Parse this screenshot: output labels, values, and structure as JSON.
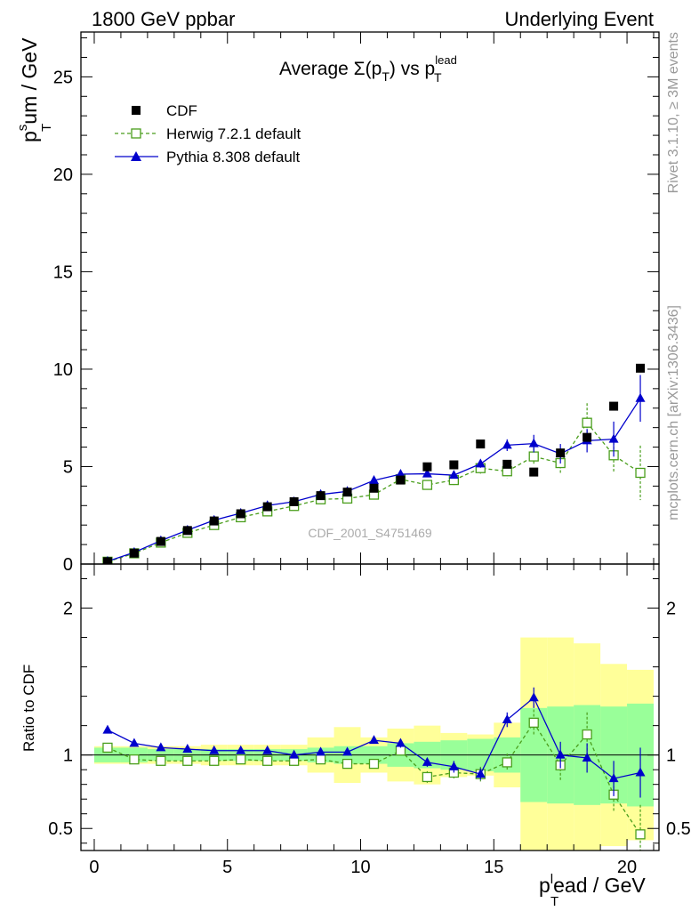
{
  "header": {
    "left": "1800 GeV ppbar",
    "right": "Underlying Event"
  },
  "side": {
    "rivet": "Rivet 3.1.10, ≥ 3M events",
    "mcplots": "mcplots.cern.ch [arXiv:1306.3436]"
  },
  "watermark": "CDF_2001_S4751469",
  "chart_data": {
    "type": "scatter",
    "title": "Average Σ(p_T) vs p_T^lead",
    "title_parts": {
      "lead": "Average Σ(p",
      "t1": "T",
      "mid": ") vs p",
      "sup": "lead",
      "t2": "T"
    },
    "xlabel": "p_T^l ead / GeV",
    "xlabel_parts": {
      "base": "p",
      "sup": "l",
      "sub": "T",
      "rest": "ead / GeV"
    },
    "ylabel": "p_T^s um / GeV",
    "ylabel_parts": {
      "base": "p",
      "sup": "s",
      "sub": "T",
      "rest": "um / GeV"
    },
    "ratio_ylabel": "Ratio to CDF",
    "xlim": [
      -0.5,
      21.2
    ],
    "ylim": [
      0,
      27.3
    ],
    "ratio_ylim": [
      0.35,
      2.3
    ],
    "x_ticks": [
      0,
      5,
      10,
      15,
      20
    ],
    "y_ticks": [
      0,
      5,
      10,
      15,
      20,
      25
    ],
    "ratio_ticks": [
      0.5,
      1,
      2
    ],
    "legend_position": "top-left",
    "x": [
      0.5,
      1.5,
      2.5,
      3.5,
      4.5,
      5.5,
      6.5,
      7.5,
      8.5,
      9.5,
      10.5,
      11.5,
      12.5,
      13.5,
      14.5,
      15.5,
      16.5,
      17.5,
      18.5,
      19.5,
      20.5
    ],
    "band_edges": [
      0,
      1,
      2,
      3,
      4,
      5,
      6,
      7,
      8,
      9,
      10,
      11,
      12,
      13,
      14,
      15,
      16,
      17,
      18,
      19,
      20,
      21
    ],
    "band_stat": [
      0.05,
      0.05,
      0.04,
      0.04,
      0.04,
      0.04,
      0.04,
      0.04,
      0.05,
      0.06,
      0.06,
      0.08,
      0.09,
      0.1,
      0.11,
      0.12,
      0.32,
      0.33,
      0.34,
      0.33,
      0.35
    ],
    "band_total": [
      0.06,
      0.06,
      0.06,
      0.06,
      0.07,
      0.07,
      0.07,
      0.07,
      0.12,
      0.19,
      0.12,
      0.18,
      0.2,
      0.15,
      0.14,
      0.22,
      0.8,
      0.8,
      0.76,
      0.62,
      0.58
    ],
    "series": [
      {
        "name": "CDF",
        "color": "#000000",
        "marker": "square-filled",
        "values": [
          0.12,
          0.56,
          1.16,
          1.72,
          2.21,
          2.58,
          2.94,
          3.2,
          3.51,
          3.69,
          3.89,
          4.31,
          4.99,
          5.09,
          6.16,
          5.12,
          4.72,
          5.7,
          6.5,
          8.1,
          10.05
        ]
      },
      {
        "name": "Herwig 7.2.1 default",
        "color": "#4a9e1c",
        "marker": "square-open",
        "line": "dashed",
        "values": [
          0.12,
          0.55,
          1.1,
          1.6,
          2.0,
          2.4,
          2.7,
          2.98,
          3.32,
          3.36,
          3.56,
          4.35,
          4.06,
          4.31,
          4.92,
          4.76,
          5.52,
          5.18,
          7.25,
          5.58,
          4.68
        ],
        "errors": [
          0.02,
          0.02,
          0.03,
          0.04,
          0.04,
          0.05,
          0.06,
          0.08,
          0.09,
          0.1,
          0.12,
          0.18,
          0.22,
          0.25,
          0.28,
          0.35,
          0.45,
          0.55,
          1.0,
          0.9,
          1.4
        ],
        "ratio": [
          1.05,
          0.97,
          0.96,
          0.96,
          0.96,
          0.97,
          0.96,
          0.96,
          0.97,
          0.94,
          0.94,
          1.03,
          0.85,
          0.88,
          0.87,
          0.95,
          1.22,
          0.93,
          1.14,
          0.73,
          0.46
        ],
        "ratio_errors": [
          0.01,
          0.01,
          0.01,
          0.01,
          0.01,
          0.01,
          0.01,
          0.01,
          0.02,
          0.02,
          0.02,
          0.03,
          0.04,
          0.04,
          0.05,
          0.06,
          0.09,
          0.1,
          0.15,
          0.12,
          0.2
        ]
      },
      {
        "name": "Pythia 8.308 default",
        "color": "#0000cc",
        "marker": "triangle-filled",
        "line": "solid",
        "values": [
          0.14,
          0.6,
          1.2,
          1.74,
          2.25,
          2.61,
          3.0,
          3.2,
          3.57,
          3.73,
          4.29,
          4.61,
          4.63,
          4.56,
          5.14,
          6.1,
          6.18,
          5.66,
          6.33,
          6.41,
          8.5
        ],
        "errors": [
          0.01,
          0.02,
          0.03,
          0.04,
          0.05,
          0.05,
          0.06,
          0.07,
          0.08,
          0.1,
          0.11,
          0.13,
          0.15,
          0.17,
          0.2,
          0.3,
          0.45,
          0.5,
          0.6,
          0.9,
          1.2
        ],
        "ratio": [
          1.17,
          1.08,
          1.05,
          1.04,
          1.03,
          1.03,
          1.03,
          1.0,
          1.02,
          1.02,
          1.1,
          1.08,
          0.95,
          0.92,
          0.87,
          1.24,
          1.39,
          1.0,
          0.98,
          0.84,
          0.88
        ],
        "ratio_errors": [
          0.01,
          0.01,
          0.01,
          0.01,
          0.01,
          0.01,
          0.01,
          0.01,
          0.02,
          0.02,
          0.02,
          0.03,
          0.03,
          0.04,
          0.04,
          0.05,
          0.07,
          0.09,
          0.1,
          0.12,
          0.17
        ]
      }
    ]
  }
}
